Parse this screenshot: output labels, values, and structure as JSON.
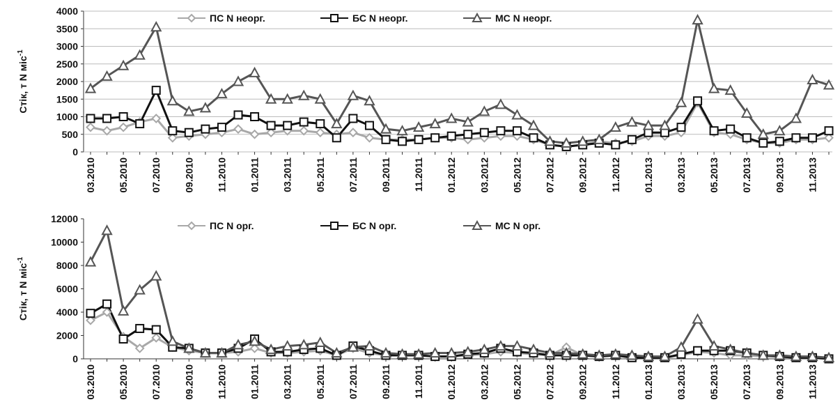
{
  "chart_data": [
    {
      "type": "line",
      "ylabel": "Стік, т N міс",
      "ylabel_sup": "-1",
      "categories": [
        "03.2010",
        null,
        "05.2010",
        null,
        "07.2010",
        null,
        "09.2010",
        null,
        "11.2010",
        null,
        "01.2011",
        null,
        "03.2011",
        null,
        "05.2011",
        null,
        "07.2011",
        null,
        "09.2011",
        null,
        "11.2011",
        null,
        "01.2012",
        null,
        "03.2012",
        null,
        "05.2012",
        null,
        "07.2012",
        null,
        "09.2012",
        null,
        "11.2012",
        null,
        "01.2013",
        null,
        "03.2013",
        null,
        "05.2013",
        null,
        "07.2013",
        null,
        "09.2013",
        null,
        "11.2013",
        null
      ],
      "ylim": [
        0,
        4000
      ],
      "yticks": [
        0,
        500,
        1000,
        1500,
        2000,
        2500,
        3000,
        3500,
        4000
      ],
      "grid": true,
      "legend": "top",
      "series": [
        {
          "name": "ПС N неорг.",
          "color": "#a8a8a8",
          "marker": "diamond",
          "values": [
            700,
            600,
            700,
            850,
            950,
            400,
            450,
            500,
            550,
            650,
            500,
            550,
            600,
            600,
            550,
            500,
            550,
            400,
            350,
            350,
            350,
            400,
            400,
            350,
            400,
            450,
            450,
            350,
            200,
            150,
            200,
            300,
            250,
            300,
            450,
            450,
            550,
            1400,
            550,
            500,
            350,
            250,
            250,
            350,
            350,
            400
          ]
        },
        {
          "name": "БС N неорг.",
          "color": "#111111",
          "marker": "square",
          "values": [
            950,
            950,
            1000,
            800,
            1750,
            600,
            550,
            650,
            700,
            1050,
            1000,
            750,
            750,
            850,
            800,
            400,
            950,
            750,
            350,
            300,
            350,
            400,
            450,
            500,
            550,
            600,
            600,
            400,
            200,
            150,
            200,
            250,
            200,
            350,
            550,
            550,
            700,
            1450,
            600,
            650,
            400,
            250,
            300,
            400,
            400,
            600
          ]
        },
        {
          "name": "МС N неорг.",
          "color": "#555555",
          "marker": "triangle",
          "values": [
            1800,
            2150,
            2450,
            2750,
            3550,
            1450,
            1150,
            1250,
            1650,
            2000,
            2250,
            1500,
            1500,
            1600,
            1500,
            800,
            1600,
            1450,
            650,
            600,
            700,
            800,
            950,
            850,
            1150,
            1350,
            1050,
            750,
            300,
            250,
            300,
            350,
            700,
            850,
            750,
            750,
            1400,
            3750,
            1800,
            1750,
            1100,
            500,
            600,
            950,
            2050,
            1900
          ]
        }
      ]
    },
    {
      "type": "line",
      "ylabel": "Стік, т N міс",
      "ylabel_sup": "-1",
      "categories": [
        "03.2010",
        null,
        "05.2010",
        null,
        "07.2010",
        null,
        "09.2010",
        null,
        "11.2010",
        null,
        "01.2011",
        null,
        "03.2011",
        null,
        "05.2011",
        null,
        "07.2011",
        null,
        "09.2011",
        null,
        "11.2011",
        null,
        "01.2012",
        null,
        "03.2012",
        null,
        "05.2012",
        null,
        "07.2012",
        null,
        "09.2012",
        null,
        "11.2012",
        null,
        "01.2013",
        null,
        "03.2013",
        null,
        "05.2013",
        null,
        "07.2013",
        null,
        "09.2013",
        null,
        "11.2013",
        null
      ],
      "ylim": [
        0,
        12000
      ],
      "yticks": [
        0,
        2000,
        4000,
        6000,
        8000,
        10000,
        12000
      ],
      "grid": false,
      "legend": "top",
      "series": [
        {
          "name": "ПС N орг.",
          "color": "#a8a8a8",
          "marker": "diamond",
          "values": [
            3300,
            4000,
            1900,
            900,
            1800,
            1000,
            700,
            500,
            500,
            600,
            900,
            500,
            500,
            600,
            700,
            300,
            900,
            500,
            300,
            300,
            300,
            200,
            200,
            300,
            400,
            600,
            500,
            400,
            300,
            1000,
            300,
            200,
            300,
            200,
            100,
            100,
            300,
            600,
            500,
            300,
            300,
            200,
            200,
            100,
            100,
            0
          ]
        },
        {
          "name": "БС N орг.",
          "color": "#111111",
          "marker": "square",
          "values": [
            3900,
            4700,
            1700,
            2600,
            2500,
            1000,
            900,
            500,
            500,
            900,
            1700,
            600,
            600,
            800,
            900,
            300,
            1100,
            700,
            300,
            300,
            300,
            200,
            200,
            400,
            500,
            900,
            600,
            500,
            300,
            300,
            300,
            200,
            300,
            100,
            100,
            100,
            400,
            700,
            700,
            700,
            500,
            300,
            200,
            100,
            100,
            0
          ]
        },
        {
          "name": "МС N орг.",
          "color": "#555555",
          "marker": "triangle",
          "values": [
            8300,
            11000,
            4100,
            5900,
            7100,
            1500,
            900,
            500,
            500,
            1200,
            1500,
            800,
            1100,
            1200,
            1400,
            500,
            1000,
            1100,
            500,
            400,
            400,
            500,
            500,
            600,
            800,
            1100,
            1100,
            800,
            500,
            500,
            400,
            300,
            400,
            300,
            200,
            200,
            1000,
            3400,
            1100,
            800,
            500,
            300,
            300,
            200,
            200,
            100
          ]
        }
      ]
    }
  ]
}
